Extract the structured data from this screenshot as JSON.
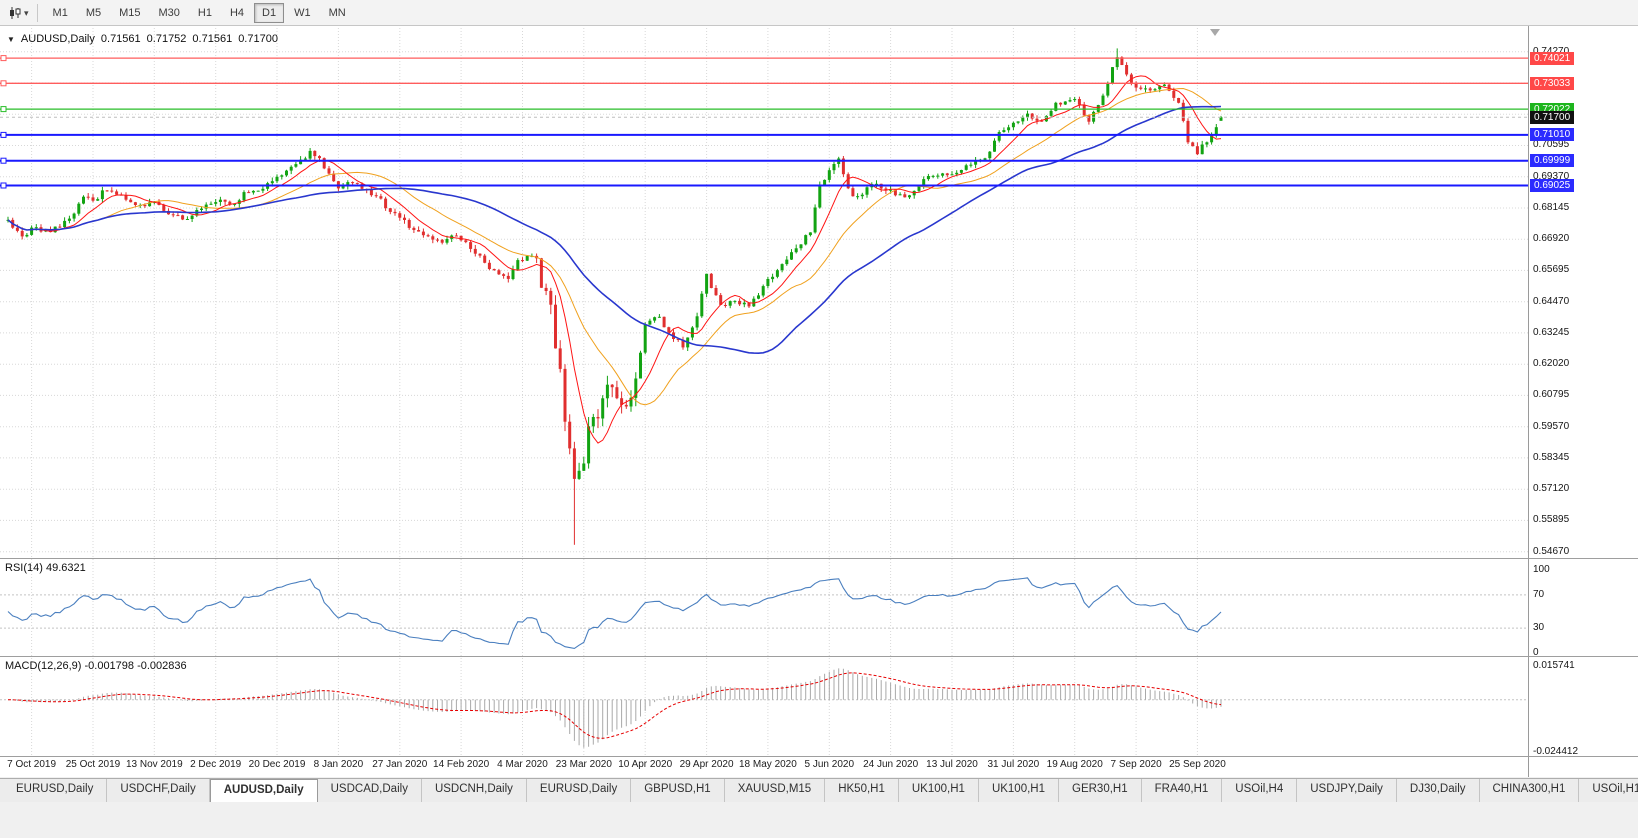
{
  "colors": {
    "bull": "#12A312",
    "bear": "#E02F2F",
    "ma_fast": "#FF1414",
    "ma_mid": "#F0A11E",
    "ma_slow": "#2937CE",
    "hline_red": "#FF5C5C",
    "hline_green": "#28BE28",
    "hline_blue": "#1919FF",
    "current_price_line": "#BDBDBD",
    "badge_red": "#FF4848",
    "badge_green": "#1DB51D",
    "badge_blue": "#2B2BFF",
    "badge_black": "#111111",
    "rsi_line": "#4A7FBF",
    "macd_hist": "#A9A9A9",
    "macd_signal": "#E60000",
    "grid": "#D8D8D8"
  },
  "toolbar": {
    "timeframes": [
      "M1",
      "M5",
      "M15",
      "M30",
      "H1",
      "H4",
      "D1",
      "W1",
      "MN"
    ],
    "active_timeframe": "D1"
  },
  "chart": {
    "symbol_period": "AUDUSD,Daily",
    "open": "0.71561",
    "high": "0.71752",
    "low": "0.71561",
    "close": "0.71700"
  },
  "price_axis": {
    "labels": [
      {
        "text": "0.74270",
        "price": 0.7427,
        "type": "plain"
      },
      {
        "text": "0.74021",
        "price": 0.74021,
        "type": "red"
      },
      {
        "text": "0.73033",
        "price": 0.73033,
        "type": "red"
      },
      {
        "text": "0.72022",
        "price": 0.72022,
        "type": "green"
      },
      {
        "text": "0.71700",
        "price": 0.717,
        "type": "black"
      },
      {
        "text": "0.71010",
        "price": 0.7101,
        "type": "blue"
      },
      {
        "text": "0.70595",
        "price": 0.70595,
        "type": "plain"
      },
      {
        "text": "0.69999",
        "price": 0.69999,
        "type": "blue"
      },
      {
        "text": "0.69370",
        "price": 0.6937,
        "type": "plain"
      },
      {
        "text": "0.69025",
        "price": 0.69025,
        "type": "blue"
      },
      {
        "text": "0.68145",
        "price": 0.68145,
        "type": "plain"
      },
      {
        "text": "0.66920",
        "price": 0.6692,
        "type": "plain"
      },
      {
        "text": "0.65695",
        "price": 0.65695,
        "type": "plain"
      },
      {
        "text": "0.64470",
        "price": 0.6447,
        "type": "plain"
      },
      {
        "text": "0.63245",
        "price": 0.63245,
        "type": "plain"
      },
      {
        "text": "0.62020",
        "price": 0.6202,
        "type": "plain"
      },
      {
        "text": "0.60795",
        "price": 0.60795,
        "type": "plain"
      },
      {
        "text": "0.59570",
        "price": 0.5957,
        "type": "plain"
      },
      {
        "text": "0.58345",
        "price": 0.58345,
        "type": "plain"
      },
      {
        "text": "0.57120",
        "price": 0.5712,
        "type": "plain"
      },
      {
        "text": "0.55895",
        "price": 0.55895,
        "type": "plain"
      },
      {
        "text": "0.54670",
        "price": 0.5467,
        "type": "plain"
      }
    ]
  },
  "rsi": {
    "label": "RSI(14)",
    "value": "49.6321",
    "axis": [
      "100",
      "70",
      "30",
      "0"
    ],
    "levels": [
      70,
      30
    ]
  },
  "macd": {
    "label": "MACD(12,26,9)",
    "values": "-0.001798 -0.002836",
    "axis_max": "0.015741",
    "axis_min": "-0.024412"
  },
  "date_axis": [
    "7 Oct 2019",
    "25 Oct 2019",
    "13 Nov 2019",
    "2 Dec 2019",
    "20 Dec 2019",
    "8 Jan 2020",
    "27 Jan 2020",
    "14 Feb 2020",
    "4 Mar 2020",
    "23 Mar 2020",
    "10 Apr 2020",
    "29 Apr 2020",
    "18 May 2020",
    "5 Jun 2020",
    "24 Jun 2020",
    "13 Jul 2020",
    "31 Jul 2020",
    "19 Aug 2020",
    "7 Sep 2020",
    "25 Sep 2020"
  ],
  "tabs": {
    "items": [
      "EURUSD,Daily",
      "USDCHF,Daily",
      "AUDUSD,Daily",
      "USDCAD,Daily",
      "USDCNH,Daily",
      "EURUSD,Daily",
      "GBPUSD,H1",
      "XAUUSD,M15",
      "HK50,H1",
      "UK100,H1",
      "UK100,H1",
      "GER30,H1",
      "FRA40,H1",
      "USOil,H4",
      "USDJPY,Daily",
      "DJ30,Daily",
      "CHINA300,H1",
      "USOil,H1"
    ],
    "active_index": 2
  },
  "chart_data": {
    "type": "candlestick",
    "symbol": "AUDUSD",
    "timeframe": "Daily",
    "candle_count": 258,
    "y_axis_range": [
      0.545,
      0.752
    ],
    "label_indices": [
      5,
      18,
      31,
      44,
      57,
      70,
      83,
      96,
      109,
      122,
      135,
      148,
      161,
      174,
      187,
      200,
      213,
      226,
      239,
      252
    ],
    "price_waypoints": [
      [
        0,
        0.6765
      ],
      [
        3,
        0.67
      ],
      [
        5,
        0.6738
      ],
      [
        9,
        0.6722
      ],
      [
        13,
        0.6772
      ],
      [
        16,
        0.6852
      ],
      [
        18,
        0.6843
      ],
      [
        21,
        0.689
      ],
      [
        24,
        0.6862
      ],
      [
        28,
        0.682
      ],
      [
        31,
        0.684
      ],
      [
        34,
        0.6795
      ],
      [
        37,
        0.6768
      ],
      [
        41,
        0.6808
      ],
      [
        44,
        0.6846
      ],
      [
        47,
        0.6825
      ],
      [
        50,
        0.6868
      ],
      [
        54,
        0.6898
      ],
      [
        57,
        0.693
      ],
      [
        61,
        0.6988
      ],
      [
        64,
        0.703
      ],
      [
        66,
        0.7002
      ],
      [
        68,
        0.6942
      ],
      [
        70,
        0.69
      ],
      [
        74,
        0.6912
      ],
      [
        78,
        0.6858
      ],
      [
        83,
        0.6772
      ],
      [
        87,
        0.672
      ],
      [
        91,
        0.6682
      ],
      [
        94,
        0.67
      ],
      [
        96,
        0.669
      ],
      [
        100,
        0.662
      ],
      [
        104,
        0.6548
      ],
      [
        106,
        0.6528
      ],
      [
        108,
        0.6605
      ],
      [
        110,
        0.6628
      ],
      [
        112,
        0.661
      ],
      [
        113,
        0.6495
      ],
      [
        115,
        0.6448
      ],
      [
        116,
        0.629
      ],
      [
        117,
        0.6175
      ],
      [
        118,
        0.6
      ],
      [
        119,
        0.588
      ],
      [
        120,
        0.5745
      ],
      [
        121,
        0.5792
      ],
      [
        122,
        0.5835
      ],
      [
        123,
        0.597
      ],
      [
        125,
        0.6005
      ],
      [
        127,
        0.6132
      ],
      [
        129,
        0.6075
      ],
      [
        131,
        0.6018
      ],
      [
        133,
        0.6135
      ],
      [
        135,
        0.6352
      ],
      [
        138,
        0.6392
      ],
      [
        140,
        0.6322
      ],
      [
        143,
        0.627
      ],
      [
        146,
        0.6392
      ],
      [
        148,
        0.6548
      ],
      [
        151,
        0.6425
      ],
      [
        154,
        0.6452
      ],
      [
        157,
        0.6432
      ],
      [
        161,
        0.6528
      ],
      [
        164,
        0.6598
      ],
      [
        167,
        0.6648
      ],
      [
        170,
        0.6725
      ],
      [
        172,
        0.6898
      ],
      [
        174,
        0.6968
      ],
      [
        176,
        0.7008
      ],
      [
        178,
        0.6882
      ],
      [
        180,
        0.6852
      ],
      [
        183,
        0.6912
      ],
      [
        187,
        0.6882
      ],
      [
        190,
        0.6858
      ],
      [
        193,
        0.6902
      ],
      [
        196,
        0.6948
      ],
      [
        200,
        0.6938
      ],
      [
        203,
        0.6988
      ],
      [
        207,
        0.7002
      ],
      [
        210,
        0.7108
      ],
      [
        213,
        0.7142
      ],
      [
        216,
        0.7178
      ],
      [
        219,
        0.7152
      ],
      [
        222,
        0.7228
      ],
      [
        226,
        0.7232
      ],
      [
        229,
        0.7162
      ],
      [
        232,
        0.7262
      ],
      [
        235,
        0.7408
      ],
      [
        237,
        0.734
      ],
      [
        239,
        0.7282
      ],
      [
        242,
        0.7282
      ],
      [
        245,
        0.7302
      ],
      [
        248,
        0.7222
      ],
      [
        250,
        0.7082
      ],
      [
        252,
        0.7032
      ],
      [
        254,
        0.7082
      ],
      [
        256,
        0.7135
      ],
      [
        257,
        0.7156
      ]
    ],
    "forced_last_candle": {
      "open": 0.71561,
      "high": 0.71752,
      "low": 0.71561,
      "close": 0.717
    },
    "crash_low": 0.5494,
    "peak_high": 0.744,
    "indicators": {
      "ma_fast_period": 8,
      "ma_mid_period": 20,
      "ma_slow_period": 45,
      "rsi_period": 14,
      "macd_periods": [
        12,
        26,
        9
      ],
      "macd_scale": [
        0.015741,
        -0.024412
      ]
    },
    "horizontal_lines": [
      {
        "price": 0.74021,
        "color": "red"
      },
      {
        "price": 0.73033,
        "color": "red"
      },
      {
        "price": 0.72022,
        "color": "green"
      },
      {
        "price": 0.7101,
        "color": "blue"
      },
      {
        "price": 0.69999,
        "color": "blue"
      },
      {
        "price": 0.69025,
        "color": "blue"
      }
    ]
  }
}
